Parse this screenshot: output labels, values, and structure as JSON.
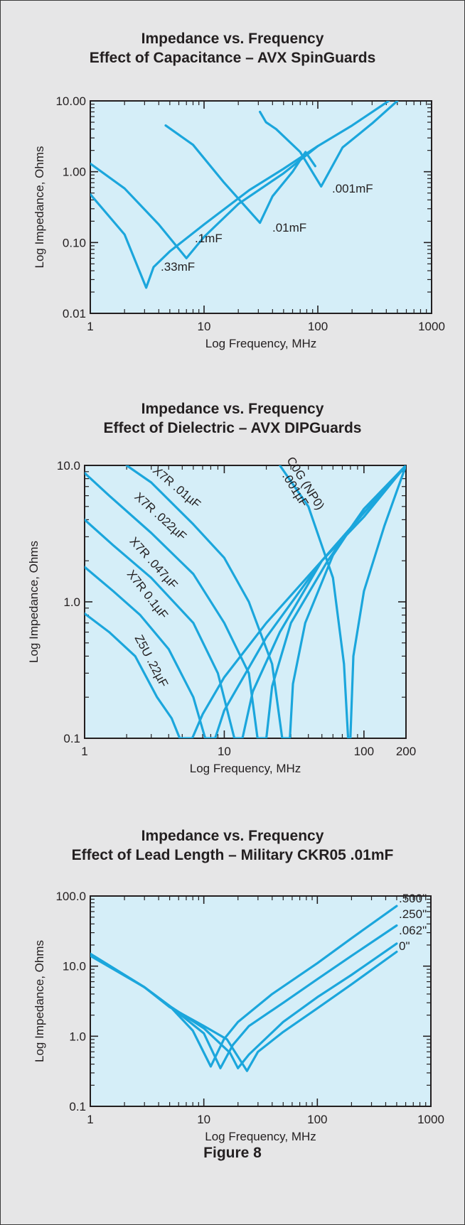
{
  "figure_caption": "Figure 8",
  "colors": {
    "background": "#e6e6e7",
    "plot_fill": "#d5eef8",
    "curve": "#1ba6dc",
    "text": "#231f20"
  },
  "chart_data": [
    {
      "type": "line",
      "title": "Impedance vs. Frequency",
      "subtitle": "Effect of Capacitance – AVX SpinGuards",
      "xlabel": "Log Frequency, MHz",
      "ylabel": "Log Impedance, Ohms",
      "x_scale": "log",
      "y_scale": "log",
      "xlim": [
        1,
        1000
      ],
      "ylim": [
        0.01,
        10
      ],
      "x_ticks": [
        1,
        10,
        100,
        1000
      ],
      "x_tick_labels": [
        "1",
        "10",
        "100",
        "1000"
      ],
      "y_ticks": [
        0.01,
        0.1,
        1,
        10
      ],
      "y_tick_labels": [
        "0.01",
        "0.10",
        "1.00",
        "10.00"
      ],
      "grid": false,
      "series": [
        {
          "name": ".33mF",
          "label": ".33mF",
          "points": [
            [
              1,
              0.48
            ],
            [
              2,
              0.13
            ],
            [
              3.1,
              0.023
            ],
            [
              3.6,
              0.045
            ],
            [
              5,
              0.075
            ],
            [
              10,
              0.18
            ],
            [
              25,
              0.55
            ],
            [
              50,
              1.1
            ],
            [
              100,
              2.3
            ]
          ]
        },
        {
          "name": ".1mF",
          "label": ".1mF",
          "points": [
            [
              1,
              1.3
            ],
            [
              2,
              0.58
            ],
            [
              4,
              0.18
            ],
            [
              7,
              0.06
            ],
            [
              10,
              0.12
            ],
            [
              20,
              0.35
            ],
            [
              50,
              0.95
            ],
            [
              100,
              2.3
            ],
            [
              200,
              4.5
            ],
            [
              420,
              10
            ]
          ]
        },
        {
          "name": ".01mF",
          "label": ".01mF",
          "points": [
            [
              4.6,
              4.5
            ],
            [
              8,
              2.4
            ],
            [
              15,
              0.7
            ],
            [
              31,
              0.19
            ],
            [
              40,
              0.45
            ],
            [
              60,
              1.0
            ],
            [
              78,
              1.9
            ],
            [
              95,
              1.2
            ]
          ]
        },
        {
          "name": ".001mF",
          "label": ".001mF",
          "points": [
            [
              31,
              7
            ],
            [
              35,
              5
            ],
            [
              43,
              4
            ],
            [
              70,
              1.9
            ],
            [
              107,
              0.62
            ],
            [
              165,
              2.2
            ],
            [
              300,
              4.8
            ],
            [
              500,
              10
            ]
          ]
        }
      ]
    },
    {
      "type": "line",
      "title": "Impedance vs. Frequency",
      "subtitle": "Effect of Dielectric – AVX DIPGuards",
      "xlabel": "Log Frequency, MHz",
      "ylabel": "Log Impedance, Ohms",
      "x_scale": "log",
      "y_scale": "log",
      "xlim": [
        1,
        200
      ],
      "ylim": [
        0.1,
        10
      ],
      "x_ticks": [
        1,
        10,
        100,
        200
      ],
      "x_tick_labels": [
        "1",
        "10",
        "100",
        "200"
      ],
      "y_ticks": [
        0.1,
        1,
        10
      ],
      "y_tick_labels": [
        "0.1",
        "1.0",
        "10.0"
      ],
      "grid": false,
      "series": [
        {
          "name": "Z5U .22µF",
          "label": "Z5U .22µF",
          "points": [
            [
              1,
              0.82
            ],
            [
              1.5,
              0.6
            ],
            [
              2.3,
              0.4
            ],
            [
              3.3,
              0.2
            ],
            [
              4.2,
              0.14
            ],
            [
              4.8,
              0.1
            ],
            [
              5.9,
              0.1
            ],
            [
              7,
              0.15
            ],
            [
              10,
              0.28
            ],
            [
              20,
              0.7
            ],
            [
              50,
              2
            ],
            [
              100,
              4.2
            ],
            [
              200,
              10
            ]
          ]
        },
        {
          "name": "X7R 0.1µF",
          "label": "X7R 0.1µF",
          "points": [
            [
              1,
              1.8
            ],
            [
              1.6,
              1.2
            ],
            [
              2.5,
              0.8
            ],
            [
              4,
              0.45
            ],
            [
              6,
              0.2
            ],
            [
              7.3,
              0.1
            ],
            [
              8.6,
              0.1
            ],
            [
              10,
              0.16
            ],
            [
              20,
              0.55
            ],
            [
              50,
              2
            ],
            [
              100,
              4.5
            ],
            [
              200,
              10
            ]
          ]
        },
        {
          "name": "X7R .047µF",
          "label": "X7R .047µF",
          "points": [
            [
              1,
              4
            ],
            [
              1.6,
              2.6
            ],
            [
              3,
              1.5
            ],
            [
              6,
              0.7
            ],
            [
              9,
              0.3
            ],
            [
              11.8,
              0.1
            ],
            [
              13.5,
              0.1
            ],
            [
              16,
              0.22
            ],
            [
              25,
              0.6
            ],
            [
              50,
              2
            ],
            [
              100,
              4.5
            ],
            [
              200,
              10
            ]
          ]
        },
        {
          "name": "X7R .022µF",
          "label": "X7R .022µF",
          "points": [
            [
              1,
              8.8
            ],
            [
              1.5,
              6
            ],
            [
              3,
              3.2
            ],
            [
              6,
              1.6
            ],
            [
              10,
              0.7
            ],
            [
              15,
              0.3
            ],
            [
              17.3,
              0.1
            ],
            [
              20,
              0.1
            ],
            [
              22,
              0.24
            ],
            [
              30,
              0.7
            ],
            [
              55,
              2
            ],
            [
              100,
              4.8
            ],
            [
              200,
              10
            ]
          ]
        },
        {
          "name": "X7R .01µF",
          "label": "X7R .01µF",
          "points": [
            [
              2,
              10
            ],
            [
              3,
              7.5
            ],
            [
              6,
              3.7
            ],
            [
              10,
              2.1
            ],
            [
              15,
              1
            ],
            [
              22,
              0.35
            ],
            [
              26,
              0.1
            ],
            [
              29.5,
              0.1
            ],
            [
              31,
              0.25
            ],
            [
              38,
              0.7
            ],
            [
              60,
              2.2
            ],
            [
              100,
              4.8
            ],
            [
              200,
              10
            ]
          ]
        },
        {
          "name": "C0G (NP0) .001µF",
          "label": "C0G (NP0) .001µF",
          "points": [
            [
              25,
              10
            ],
            [
              40,
              5
            ],
            [
              60,
              1.5
            ],
            [
              72,
              0.35
            ],
            [
              77,
              0.1
            ],
            [
              80,
              0.1
            ],
            [
              84,
              0.4
            ],
            [
              100,
              1.2
            ],
            [
              140,
              3.6
            ],
            [
              200,
              10
            ]
          ]
        }
      ]
    },
    {
      "type": "line",
      "title": "Impedance vs. Frequency",
      "subtitle": "Effect of Lead Length – Military CKR05 .01mF",
      "xlabel": "Log Frequency, MHz",
      "ylabel": "Log Impedance, Ohms",
      "x_scale": "log",
      "y_scale": "log",
      "xlim": [
        1,
        1000
      ],
      "ylim": [
        0.1,
        100
      ],
      "x_ticks": [
        1,
        10,
        100,
        1000
      ],
      "x_tick_labels": [
        "1",
        "10",
        "100",
        "1000"
      ],
      "y_ticks": [
        0.1,
        1,
        10,
        100
      ],
      "y_tick_labels": [
        "0.1",
        "1.0",
        "10.0",
        "100.0"
      ],
      "grid": false,
      "series": [
        {
          "name": ".500\"",
          "label": ".500\"",
          "points": [
            [
              1,
              15
            ],
            [
              3,
              5
            ],
            [
              5,
              2.7
            ],
            [
              8,
              1.2
            ],
            [
              11.5,
              0.37
            ],
            [
              15,
              0.9
            ],
            [
              20,
              1.6
            ],
            [
              40,
              4
            ],
            [
              100,
              11
            ],
            [
              200,
              25
            ],
            [
              500,
              72
            ]
          ]
        },
        {
          "name": ".250\"",
          "label": ".250\"",
          "points": [
            [
              1,
              15
            ],
            [
              3,
              5
            ],
            [
              5,
              2.7
            ],
            [
              10,
              1.1
            ],
            [
              14,
              0.35
            ],
            [
              18,
              0.75
            ],
            [
              25,
              1.4
            ],
            [
              50,
              3
            ],
            [
              100,
              6.5
            ],
            [
              200,
              14
            ],
            [
              500,
              38
            ]
          ]
        },
        {
          "name": ".062\"",
          "label": ".062\"",
          "points": [
            [
              1,
              15
            ],
            [
              3,
              5
            ],
            [
              5,
              2.7
            ],
            [
              10,
              1.3
            ],
            [
              17,
              0.58
            ],
            [
              20,
              0.35
            ],
            [
              25,
              0.55
            ],
            [
              50,
              1.6
            ],
            [
              100,
              3.6
            ],
            [
              200,
              7.5
            ],
            [
              500,
              21
            ]
          ]
        },
        {
          "name": "0\"",
          "label": "0\"",
          "points": [
            [
              1,
              14
            ],
            [
              3,
              5
            ],
            [
              5,
              2.6
            ],
            [
              10,
              1.4
            ],
            [
              16,
              0.9
            ],
            [
              24,
              0.32
            ],
            [
              30,
              0.6
            ],
            [
              50,
              1.15
            ],
            [
              100,
              2.5
            ],
            [
              200,
              5.5
            ],
            [
              500,
              16
            ]
          ]
        }
      ]
    }
  ]
}
